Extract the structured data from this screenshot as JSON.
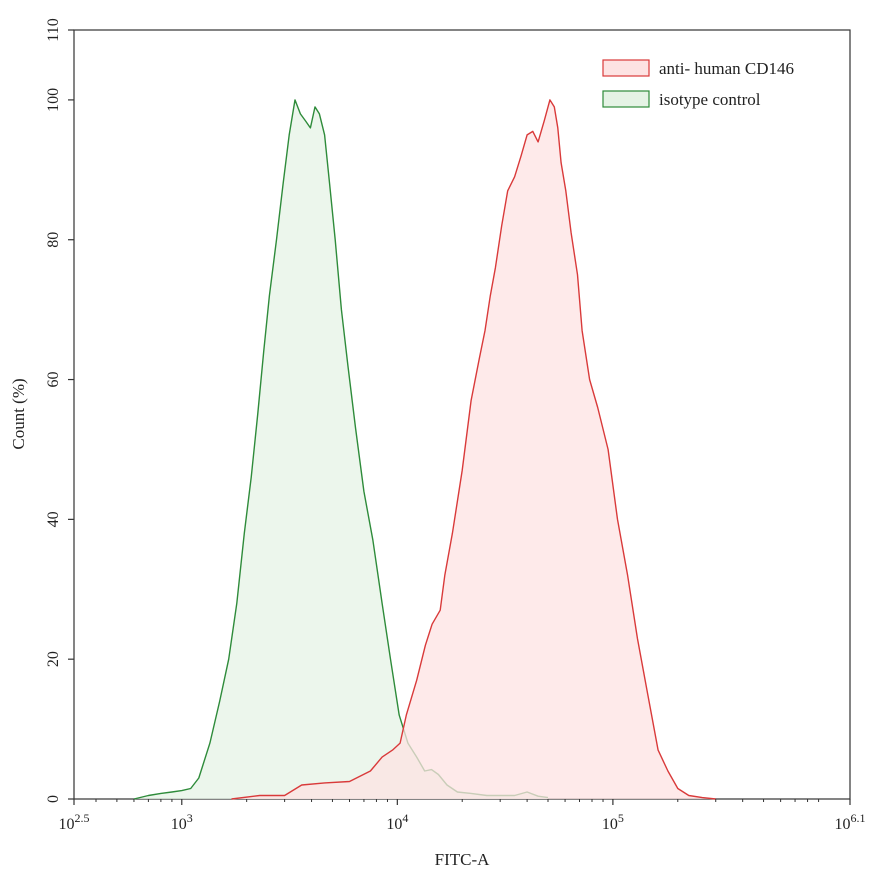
{
  "chart_data": {
    "type": "area",
    "xlabel": "FITC-A",
    "ylabel": "Count  (%)",
    "xscale": "log",
    "xlim": [
      316.23,
      1258925.41
    ],
    "ylim": [
      0,
      110
    ],
    "x_ticks": [
      {
        "value": 316.23,
        "base": "10",
        "exp": "2.5"
      },
      {
        "value": 1000,
        "base": "10",
        "exp": "3"
      },
      {
        "value": 10000,
        "base": "10",
        "exp": "4"
      },
      {
        "value": 100000,
        "base": "10",
        "exp": "5"
      },
      {
        "value": 1258925.41,
        "base": "10",
        "exp": "6.1"
      }
    ],
    "y_ticks": [
      "0",
      "20",
      "40",
      "60",
      "80",
      "100",
      "110"
    ],
    "legend_position": "top-right",
    "series": [
      {
        "name": "anti- human CD146",
        "stroke": "#d93a3a",
        "fill": "#fde3e3",
        "x": [
          1700,
          2300,
          3000,
          3600,
          4600,
          6000,
          7500,
          8500,
          9500,
          10300,
          11000,
          12300,
          13500,
          14500,
          15800,
          16600,
          18000,
          20000,
          22000,
          24000,
          25500,
          27000,
          28500,
          30500,
          32500,
          35000,
          37500,
          40000,
          42500,
          45000,
          48000,
          51000,
          53500,
          55500,
          57500,
          60500,
          64000,
          68500,
          72000,
          78000,
          85000,
          95000,
          105000,
          117000,
          130000,
          145000,
          162000,
          180000,
          200000,
          225000,
          260000,
          300000
        ],
        "y": [
          0,
          0.5,
          0.5,
          2,
          2.3,
          2.5,
          4,
          6,
          7,
          8,
          12,
          17,
          22,
          25,
          27,
          32,
          38,
          47,
          57,
          63,
          67,
          72,
          76,
          82,
          87,
          89,
          92,
          95,
          95.5,
          94,
          97,
          100,
          99,
          96,
          91,
          87,
          81,
          75,
          67,
          60,
          56,
          50,
          40,
          32,
          23,
          15,
          7,
          4,
          1.5,
          0.5,
          0.2,
          0
        ]
      },
      {
        "name": "isotype control",
        "stroke": "#2e8b3a",
        "fill": "#e5f3e5",
        "x": [
          600,
          700,
          800,
          900,
          1000,
          1100,
          1200,
          1350,
          1500,
          1650,
          1800,
          1950,
          2100,
          2250,
          2400,
          2550,
          2750,
          2950,
          3150,
          3350,
          3550,
          3750,
          3950,
          4150,
          4350,
          4600,
          4850,
          5150,
          5500,
          5900,
          6400,
          7000,
          7700,
          8500,
          9300,
          10200,
          11200,
          12300,
          13400,
          14400,
          15500,
          17000,
          19000,
          22000,
          26000,
          30000,
          35000,
          40000,
          45000,
          50000
        ],
        "y": [
          0,
          0.5,
          0.8,
          1,
          1.2,
          1.5,
          3,
          8,
          14,
          20,
          28,
          38,
          46,
          55,
          64,
          72,
          80,
          88,
          95,
          100,
          98,
          97,
          96,
          99,
          98,
          95,
          88,
          80,
          70,
          62,
          53,
          44,
          37,
          28,
          20,
          12,
          8,
          6,
          4,
          4.2,
          3.5,
          2,
          1,
          0.8,
          0.5,
          0.5,
          0.5,
          1,
          0.4,
          0.2
        ]
      }
    ]
  }
}
